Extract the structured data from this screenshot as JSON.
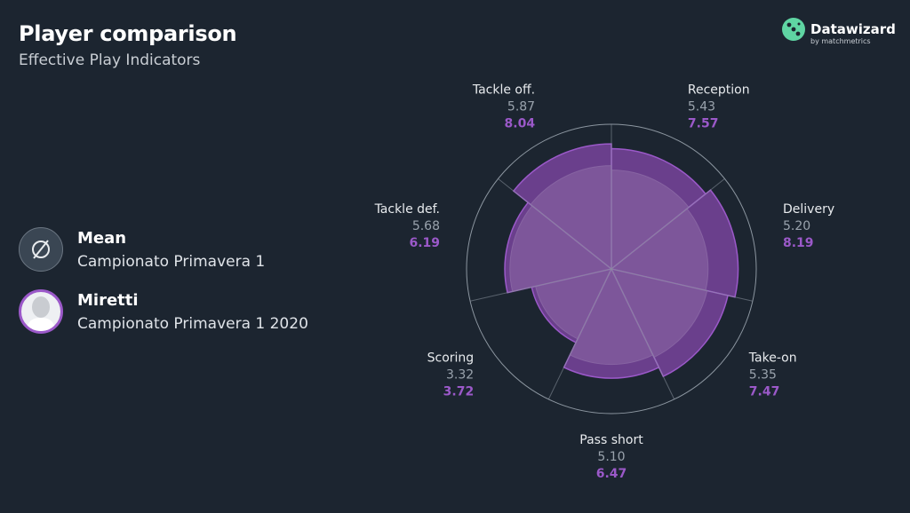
{
  "header": {
    "title": "Player comparison",
    "subtitle": "Effective Play Indicators"
  },
  "brand": {
    "name": "Datawizard",
    "sub": "by matchmetrics",
    "icon": "dice-logo-icon",
    "color": "#5fd5a3"
  },
  "legend": {
    "mean": {
      "name": "Mean",
      "competition": "Campionato Primavera 1",
      "icon": "empty-set-icon"
    },
    "player": {
      "name": "Miretti",
      "competition": "Campionato Primavera 1 2020",
      "icon": "player-silhouette-icon"
    }
  },
  "colors": {
    "player": "#9b59c9",
    "player_fill": "#6a3f8c",
    "mean_fill": "#8c6aa6",
    "mean_text": "#9aa3ad",
    "background": "#1c2530",
    "grid": "#8c96a0"
  },
  "chart_data": {
    "type": "polar-area",
    "scale_max": 10,
    "categories": [
      "Reception",
      "Delivery",
      "Take-on",
      "Pass short",
      "Scoring",
      "Tackle def.",
      "Tackle off."
    ],
    "series": [
      {
        "name": "Mean",
        "values": [
          5.43,
          5.2,
          5.35,
          5.1,
          3.32,
          5.68,
          5.87
        ]
      },
      {
        "name": "Miretti",
        "values": [
          7.57,
          8.19,
          7.47,
          6.47,
          3.72,
          6.19,
          8.04
        ]
      }
    ]
  }
}
